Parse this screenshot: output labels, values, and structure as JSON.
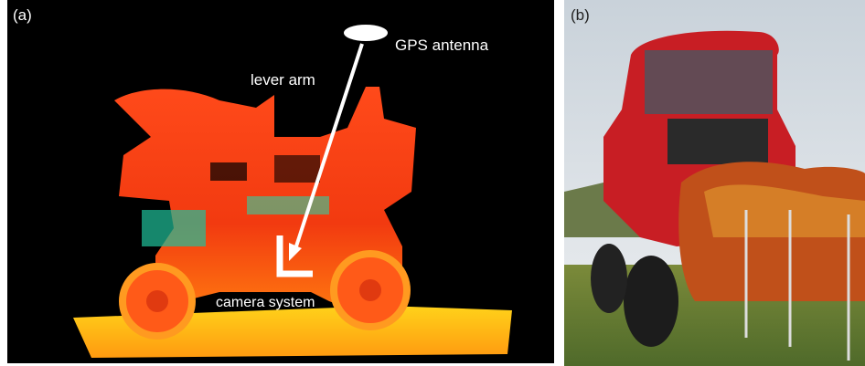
{
  "panels": [
    {
      "label": "(a)",
      "annotations": {
        "gps": "GPS antenna",
        "lever": "lever arm",
        "camera": "camera system"
      }
    },
    {
      "label": "(b)"
    }
  ]
}
